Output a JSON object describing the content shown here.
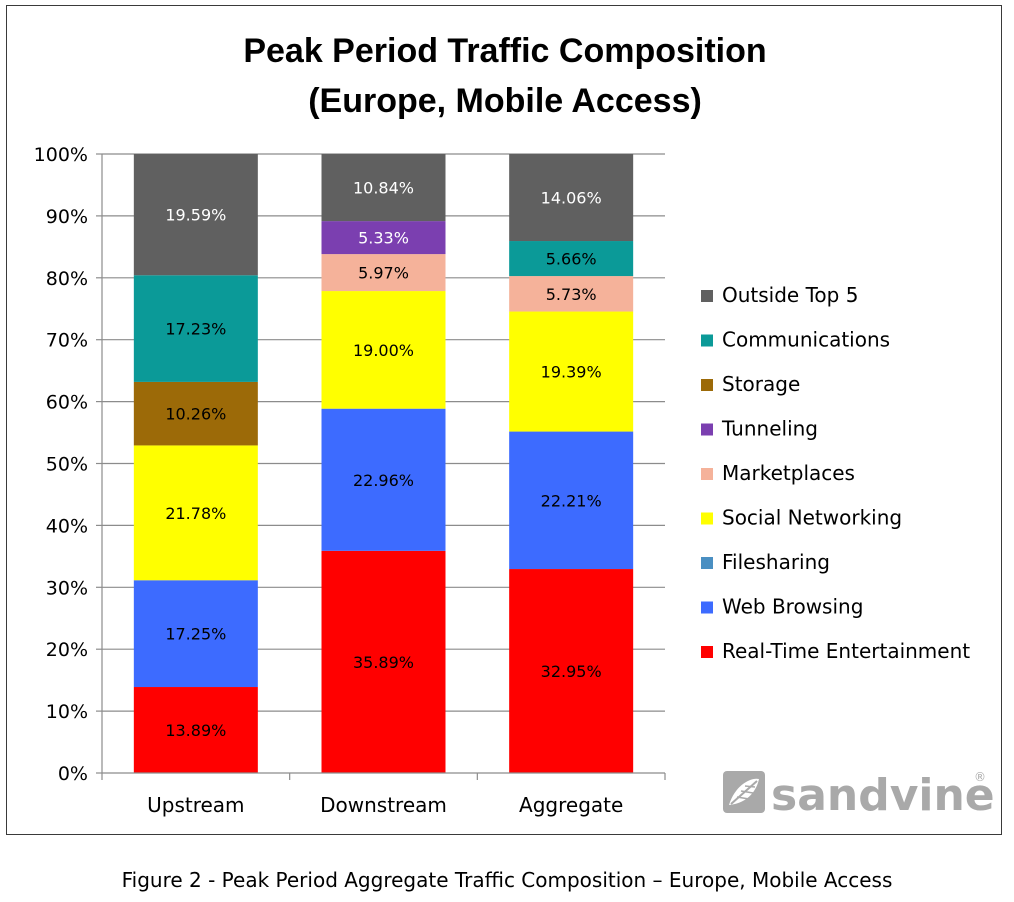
{
  "chart_data": {
    "type": "bar",
    "stacked": true,
    "title_lines": [
      "Peak Period Traffic Composition",
      "(Europe, Mobile Access)"
    ],
    "categories": [
      "Upstream",
      "Downstream",
      "Aggregate"
    ],
    "y_ticks": [
      "0%",
      "10%",
      "20%",
      "30%",
      "40%",
      "50%",
      "60%",
      "70%",
      "80%",
      "90%",
      "100%"
    ],
    "ylim": [
      0,
      100
    ],
    "legend_position": "right",
    "series": [
      {
        "name": "Real-Time Entertainment",
        "color": "#ff0000",
        "label_color": "#000000",
        "values": [
          13.89,
          35.89,
          32.95
        ],
        "labels": [
          "13.89%",
          "35.89%",
          "32.95%"
        ]
      },
      {
        "name": "Web Browsing",
        "color": "#3d6bff",
        "label_color": "#000000",
        "values": [
          17.25,
          22.96,
          22.21
        ],
        "labels": [
          "17.25%",
          "22.96%",
          "22.21%"
        ]
      },
      {
        "name": "Filesharing",
        "color": "#4a8fc2",
        "label_color": "#000000",
        "values": [
          0,
          0,
          0
        ],
        "labels": [
          "",
          "",
          ""
        ]
      },
      {
        "name": "Social Networking",
        "color": "#ffff00",
        "label_color": "#000000",
        "values": [
          21.78,
          19.0,
          19.39
        ],
        "labels": [
          "21.78%",
          "19.00%",
          "19.39%"
        ]
      },
      {
        "name": "Marketplaces",
        "color": "#f5b29a",
        "label_color": "#000000",
        "values": [
          0,
          5.97,
          5.73
        ],
        "labels": [
          "",
          "5.97%",
          "5.73%"
        ]
      },
      {
        "name": "Tunneling",
        "color": "#7b3fb0",
        "label_color": "#ffffff",
        "values": [
          0,
          5.33,
          0
        ],
        "labels": [
          "",
          "5.33%",
          ""
        ]
      },
      {
        "name": "Storage",
        "color": "#9c6a08",
        "label_color": "#000000",
        "values": [
          10.26,
          0,
          0
        ],
        "labels": [
          "10.26%",
          "",
          ""
        ]
      },
      {
        "name": "Communications",
        "color": "#0b9a98",
        "label_color": "#000000",
        "values": [
          17.23,
          0,
          5.66
        ],
        "labels": [
          "17.23%",
          "",
          "5.66%"
        ]
      },
      {
        "name": "Outside Top 5",
        "color": "#606060",
        "label_color": "#ffffff",
        "values": [
          19.59,
          10.84,
          14.06
        ],
        "labels": [
          "19.59%",
          "10.84%",
          "14.06%"
        ]
      }
    ],
    "legend_order": [
      "Outside Top 5",
      "Communications",
      "Storage",
      "Tunneling",
      "Marketplaces",
      "Social Networking",
      "Filesharing",
      "Web Browsing",
      "Real-Time Entertainment"
    ]
  },
  "logo": {
    "text": "sandvine",
    "mark": "®"
  },
  "caption": "Figure 2 - Peak Period Aggregate Traffic Composition – Europe, Mobile Access"
}
